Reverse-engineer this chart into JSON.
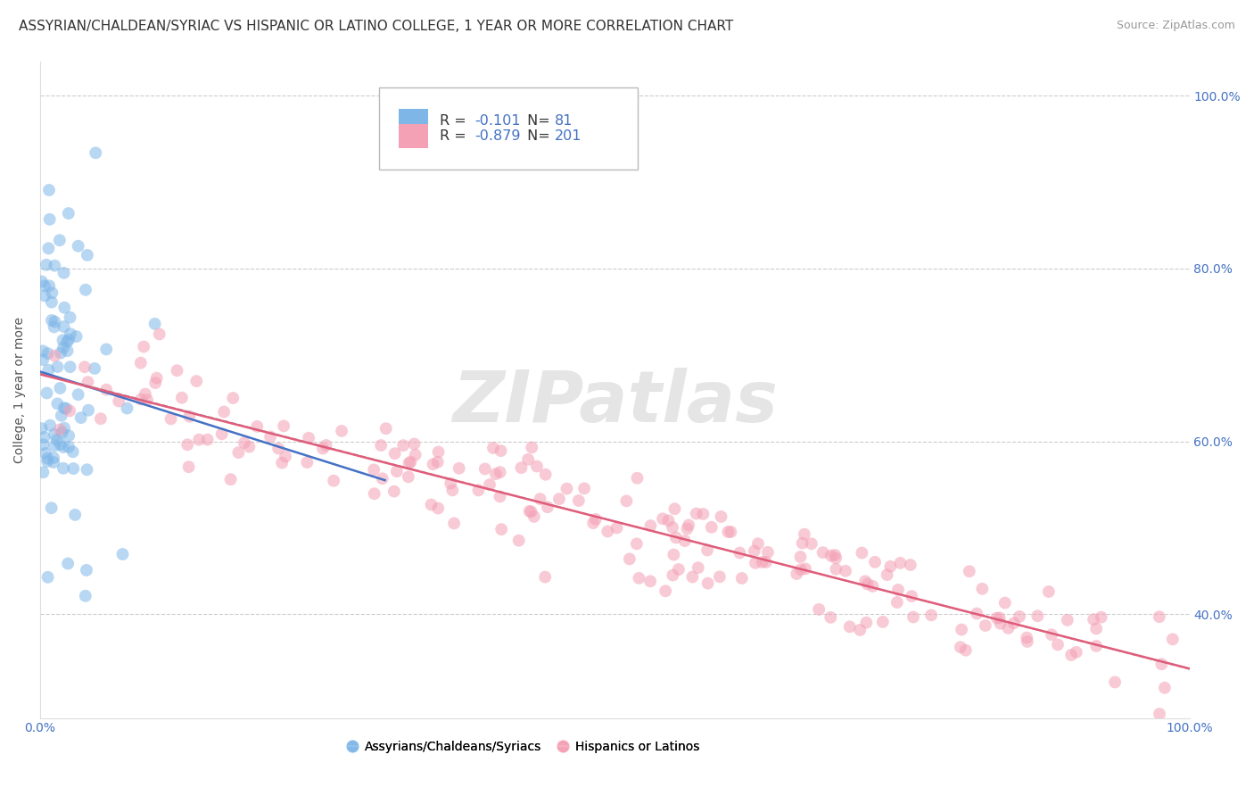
{
  "title": "ASSYRIAN/CHALDEAN/SYRIAC VS HISPANIC OR LATINO COLLEGE, 1 YEAR OR MORE CORRELATION CHART",
  "source": "Source: ZipAtlas.com",
  "ylabel": "College, 1 year or more",
  "xlim": [
    0.0,
    1.0
  ],
  "ylim": [
    0.28,
    1.04
  ],
  "blue_R": -0.101,
  "blue_N": 81,
  "pink_R": -0.879,
  "pink_N": 201,
  "blue_color": "#7EB6E8",
  "pink_color": "#F4A0B5",
  "blue_line_color": "#4472C4",
  "pink_line_color": "#E05C7A",
  "dashed_line_color": "#AAAAAA",
  "legend_label_blue": "Assyrians/Chaldeans/Syriacs",
  "legend_label_pink": "Hispanics or Latinos",
  "watermark": "ZIPatlas",
  "background_color": "#FFFFFF",
  "grid_color": "#CCCCCC",
  "title_fontsize": 11,
  "source_fontsize": 9,
  "tick_label_color": "#4472C4",
  "tick_fontsize": 10,
  "ylabel_fontsize": 10,
  "blue_scatter_seed": 42,
  "pink_scatter_seed": 123,
  "scatter_size": 100,
  "scatter_alpha": 0.55,
  "yticks": [
    0.4,
    0.6,
    0.8,
    1.0
  ],
  "yticklabels": [
    "40.0%",
    "60.0%",
    "80.0%",
    "100.0%"
  ],
  "xtick_left_label": "0.0%",
  "xtick_right_label": "100.0%"
}
